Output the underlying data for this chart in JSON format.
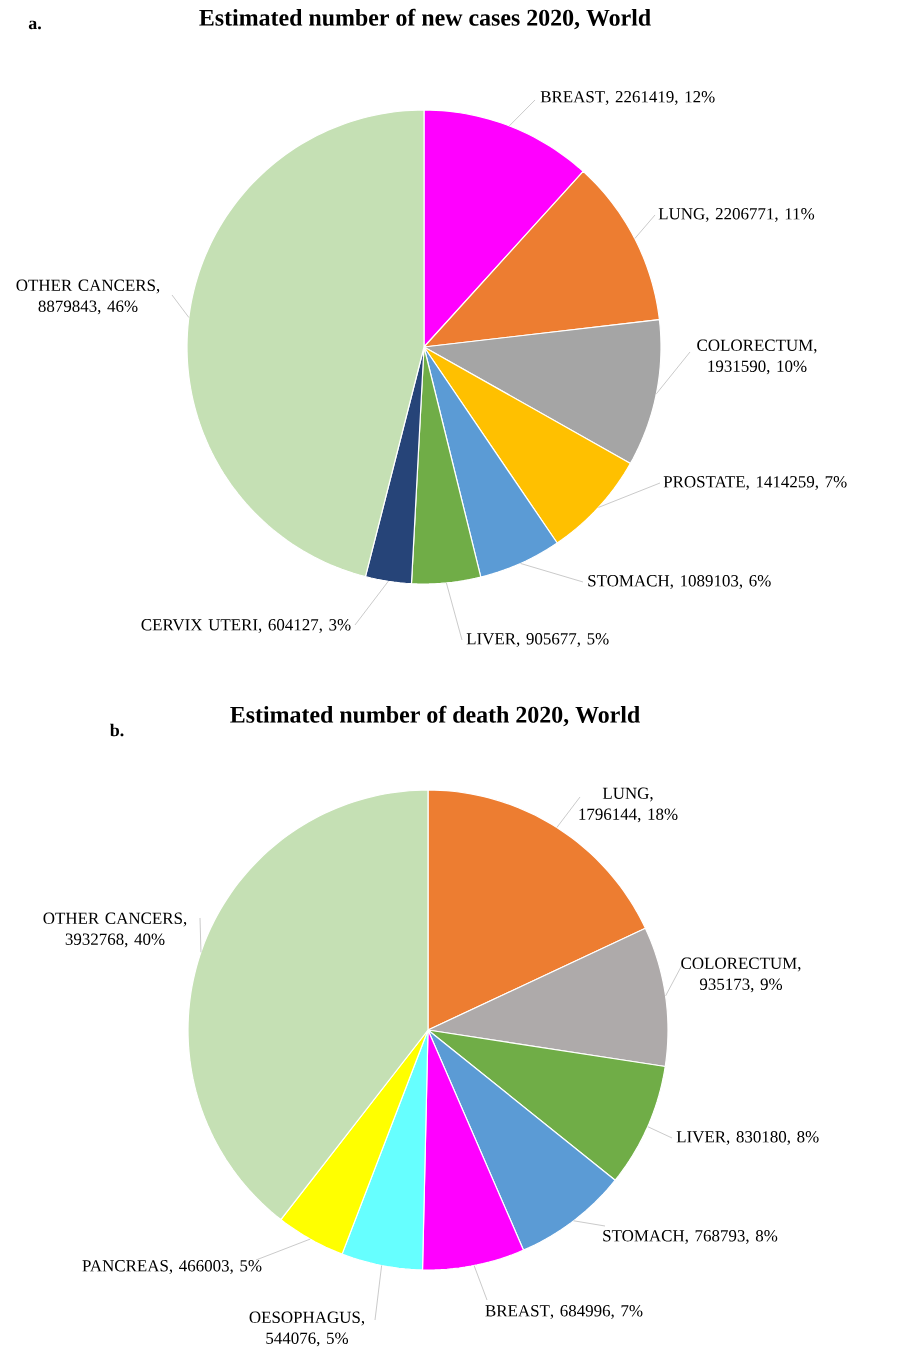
{
  "chart_data": [
    {
      "type": "pie",
      "title": "Estimated number of new cases 2020, World",
      "annotations": [
        "a."
      ],
      "categories": [
        "BREAST",
        "LUNG",
        "COLORECTUM",
        "PROSTATE",
        "STOMACH",
        "LIVER",
        "CERVIX UTERI",
        "OTHER CANCERS"
      ],
      "values": [
        2261419,
        2206771,
        1931590,
        1414259,
        1089103,
        905677,
        604127,
        8879843
      ],
      "value_labels": [
        ", 2261419, 12%",
        ", 2206771, 11%",
        ", 1931590, 10%",
        ", 1414259, 7%",
        ", 1089103, 6%",
        ", 905677, 5%",
        ", 604127, 3%",
        ", 8879843, 46%"
      ],
      "colors": [
        "#ff00ff",
        "#ed7d31",
        "#a5a5a5",
        "#ffc000",
        "#5b9bd5",
        "#70ad47",
        "#264478",
        "#c5e0b4"
      ]
    },
    {
      "type": "pie",
      "title": "Estimated number of death 2020, World",
      "annotations": [
        "b."
      ],
      "categories": [
        "LUNG",
        "COLORECTUM",
        "LIVER",
        "STOMACH",
        "BREAST",
        "OESOPHAGUS",
        "PANCREAS",
        "OTHER CANCERS"
      ],
      "values": [
        1796144,
        935173,
        830180,
        768793,
        684996,
        544076,
        466003,
        3932768
      ],
      "value_labels": [
        ", 1796144, 18%",
        ", 935173, 9%",
        ", 830180, 8%",
        ", 768793, 8%",
        ", 684996, 7%",
        ", 544076, 5%",
        ", 466003, 5%",
        ", 3932768, 40%"
      ],
      "colors": [
        "#ed7d31",
        "#aeaaaa",
        "#70ad47",
        "#5b9bd5",
        "#ff00ff",
        "#66ffff",
        "#ffff00",
        "#c5e0b4"
      ]
    }
  ]
}
